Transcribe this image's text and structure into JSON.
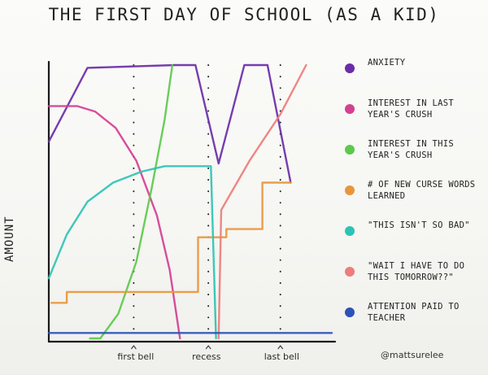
{
  "chart_data": {
    "type": "line",
    "title": "The First Day of School (as a kid)",
    "ylabel": "Amount",
    "xlabel": "",
    "x_ticks": [
      {
        "x": 33,
        "label": "first bell"
      },
      {
        "x": 62,
        "label": "recess"
      },
      {
        "x": 90,
        "label": "last bell"
      }
    ],
    "xlim": [
      0,
      110
    ],
    "ylim": [
      0,
      100
    ],
    "grid": false,
    "legend_position": "right",
    "credit": "@mattsurelee",
    "series": [
      {
        "name": "Anxiety",
        "color": "#6a2ca8",
        "points": [
          [
            0,
            72
          ],
          [
            15,
            99
          ],
          [
            49,
            100
          ],
          [
            57,
            100
          ],
          [
            66,
            64
          ],
          [
            76,
            100
          ],
          [
            85,
            100
          ],
          [
            94,
            57
          ]
        ]
      },
      {
        "name": "Interest in last year's crush",
        "color": "#d43f92",
        "points": [
          [
            0,
            85
          ],
          [
            11,
            85
          ],
          [
            18,
            83
          ],
          [
            26,
            77
          ],
          [
            34,
            65
          ],
          [
            42,
            45
          ],
          [
            47,
            25
          ],
          [
            51,
            0
          ]
        ]
      },
      {
        "name": "Interest in this year's crush",
        "color": "#5cc94a",
        "points": [
          [
            16,
            0
          ],
          [
            20,
            0
          ],
          [
            27,
            9
          ],
          [
            34,
            28
          ],
          [
            40,
            55
          ],
          [
            45,
            80
          ],
          [
            48,
            100
          ]
        ]
      },
      {
        "name": "# of new curse words learned",
        "color": "#e8963c",
        "points": [
          [
            1,
            13
          ],
          [
            7,
            13
          ],
          [
            7,
            17
          ],
          [
            58,
            17
          ],
          [
            58,
            37
          ],
          [
            69,
            37
          ],
          [
            69,
            40
          ],
          [
            83,
            40
          ],
          [
            83,
            57
          ],
          [
            94,
            57
          ]
        ]
      },
      {
        "name": "\"This isn't so bad\"",
        "color": "#2cc3b4",
        "points": [
          [
            0,
            22
          ],
          [
            7,
            38
          ],
          [
            15,
            50
          ],
          [
            25,
            57
          ],
          [
            36,
            61
          ],
          [
            45,
            63
          ],
          [
            56,
            63
          ],
          [
            63,
            63
          ],
          [
            65,
            0
          ]
        ]
      },
      {
        "name": "\"Wait I have to do this tomorrow??\"",
        "color": "#ec7d7a",
        "points": [
          [
            66,
            0
          ],
          [
            67,
            47
          ],
          [
            78,
            65
          ],
          [
            90,
            82
          ],
          [
            100,
            100
          ]
        ]
      },
      {
        "name": "Attention paid to teacher",
        "color": "#2c52b8",
        "points": [
          [
            0,
            2
          ],
          [
            40,
            2
          ],
          [
            48,
            2
          ],
          [
            64,
            2
          ],
          [
            92,
            2
          ],
          [
            110,
            2
          ]
        ]
      }
    ]
  }
}
